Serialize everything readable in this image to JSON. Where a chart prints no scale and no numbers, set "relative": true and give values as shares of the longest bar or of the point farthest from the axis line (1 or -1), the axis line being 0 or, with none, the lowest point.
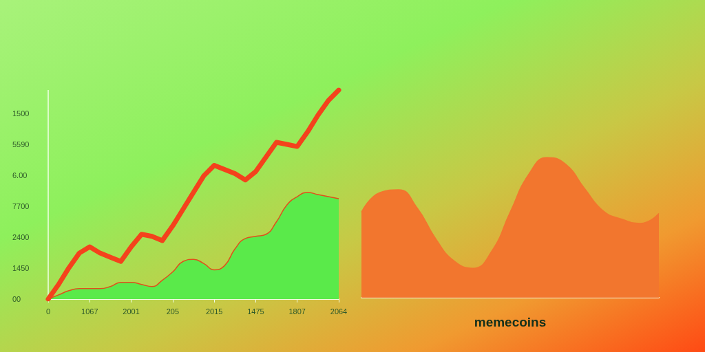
{
  "chart_data": [
    {
      "type": "line",
      "relative": true,
      "marker": "none",
      "categories": [
        "0",
        null,
        null,
        null,
        "1067",
        null,
        null,
        null,
        "2001",
        null,
        null,
        null,
        "205",
        null,
        null,
        null,
        "2015",
        null,
        null,
        null,
        "1475",
        null,
        null,
        null,
        "1807",
        null,
        null,
        null,
        "2064"
      ],
      "annotations": [
        "1500",
        "5590",
        "6.00",
        "7700",
        "2400",
        "1450",
        "00"
      ],
      "series": [
        {
          "type": "area",
          "color": "#5aea4a",
          "values": [
            0,
            0.02,
            0.04,
            0.05,
            0.05,
            0.05,
            0.06,
            0.08,
            0.08,
            0.07,
            0.06,
            0.09,
            0.13,
            0.18,
            0.19,
            0.17,
            0.14,
            0.16,
            0.24,
            0.29,
            0.3,
            0.31,
            0.37,
            0.45,
            0.49,
            0.51,
            0.5,
            0.49,
            0.48
          ]
        },
        {
          "color": "#f4421c",
          "values": [
            0,
            0.07,
            0.15,
            0.22,
            0.25,
            0.22,
            0.2,
            0.18,
            0.25,
            0.31,
            0.3,
            0.28,
            0.35,
            0.43,
            0.51,
            0.59,
            0.64,
            0.62,
            0.6,
            0.57,
            0.61,
            0.68,
            0.75,
            0.74,
            0.73,
            0.8,
            0.88,
            0.95,
            1.0
          ]
        }
      ]
    },
    {
      "type": "area",
      "relative": true,
      "xlabel": "memecoins",
      "categories": [
        null,
        null,
        null,
        null,
        null,
        null,
        null,
        null,
        null,
        null,
        null,
        null,
        null,
        null,
        null,
        null,
        null
      ],
      "series": [
        {
          "color": "#f2762e",
          "values": [
            0.61,
            0.75,
            0.77,
            0.64,
            0.42,
            0.26,
            0.21,
            0.33,
            0.61,
            0.88,
            1.0,
            0.95,
            0.78,
            0.62,
            0.56,
            0.53,
            0.6
          ]
        }
      ]
    }
  ]
}
